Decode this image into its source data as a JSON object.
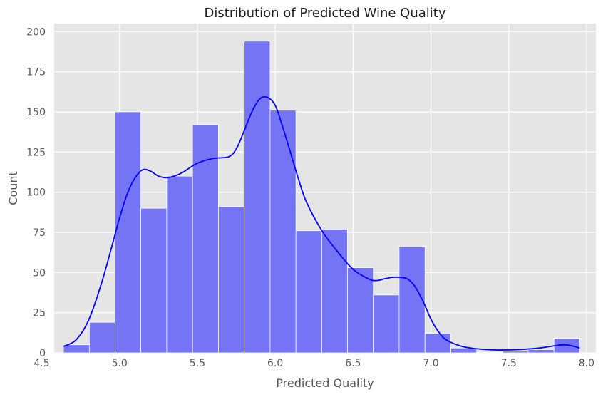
{
  "chart_data": {
    "type": "bar",
    "title": "Distribution of Predicted Wine Quality",
    "xlabel": "Predicted Quality",
    "ylabel": "Count",
    "xlim": [
      4.58,
      8.06
    ],
    "ylim": [
      0,
      205
    ],
    "xticks": [
      4.5,
      5.0,
      5.5,
      6.0,
      6.5,
      7.0,
      7.5,
      8.0
    ],
    "xtick_labels": [
      "4.5",
      "5.0",
      "5.5",
      "6.0",
      "6.5",
      "7.0",
      "7.5",
      "8.0"
    ],
    "yticks": [
      0,
      25,
      50,
      75,
      100,
      125,
      150,
      175,
      200
    ],
    "ytick_labels": [
      "0",
      "25",
      "50",
      "75",
      "100",
      "125",
      "150",
      "175",
      "200"
    ],
    "grid": true,
    "bin_edges": [
      4.64,
      4.806,
      4.972,
      5.137,
      5.303,
      5.469,
      5.635,
      5.801,
      5.967,
      6.133,
      6.299,
      6.464,
      6.63,
      6.796,
      6.962,
      7.128,
      7.294,
      7.46,
      7.625,
      7.791,
      7.957
    ],
    "values": [
      5,
      19,
      150,
      90,
      110,
      142,
      91,
      194,
      151,
      76,
      77,
      53,
      36,
      66,
      12,
      3,
      0,
      1,
      2,
      9
    ],
    "kde": {
      "x": [
        4.64,
        4.72,
        4.8,
        4.88,
        4.95,
        5.0,
        5.05,
        5.1,
        5.15,
        5.2,
        5.25,
        5.3,
        5.35,
        5.4,
        5.5,
        5.6,
        5.7,
        5.75,
        5.8,
        5.85,
        5.9,
        5.95,
        6.0,
        6.05,
        6.1,
        6.15,
        6.2,
        6.3,
        6.4,
        6.5,
        6.6,
        6.65,
        6.7,
        6.75,
        6.8,
        6.85,
        6.9,
        6.95,
        7.0,
        7.05,
        7.1,
        7.2,
        7.3,
        7.4,
        7.5,
        7.6,
        7.7,
        7.8,
        7.85,
        7.9,
        7.957
      ],
      "y": [
        4,
        8,
        20,
        42,
        66,
        84,
        99,
        109,
        114,
        113,
        110,
        109,
        110,
        112,
        118,
        121,
        122,
        127,
        138,
        150,
        158,
        159,
        154,
        140,
        124,
        108,
        94,
        76,
        63,
        52,
        46,
        45,
        46,
        47,
        47,
        46,
        41,
        32,
        21,
        13,
        8,
        4,
        2.5,
        1.8,
        1.8,
        2.2,
        3,
        4.5,
        5,
        4.5,
        3
      ]
    },
    "colors": {
      "bar_fill": "#7474f4",
      "bar_stroke": "#ffffff",
      "kde_line": "#0000ff",
      "plot_background": "#e5e5e5",
      "grid": "#ffffff"
    }
  }
}
